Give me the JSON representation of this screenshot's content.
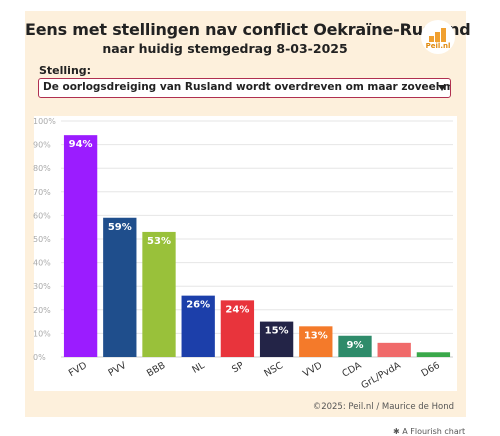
{
  "header": {
    "title": "Eens met stellingen nav conflict Oekraïne-Rusland",
    "subtitle": "naar huidig stemgedrag 8-03-2025",
    "logo_text": "Peil.nl"
  },
  "stelling": {
    "label": "Stelling:",
    "selected": "De oorlogsdreiging van Rusland wordt overdreven om maar zoveel mogelijk geld na"
  },
  "footer": {
    "credit": "©2025: Peil.nl / Maurice de Hond",
    "flourish": "A Flourish chart"
  },
  "chart_data": {
    "type": "bar",
    "title": "",
    "xlabel": "",
    "ylabel": "",
    "ylim": [
      0,
      100
    ],
    "yticks": [
      0,
      10,
      20,
      30,
      40,
      50,
      60,
      70,
      80,
      90,
      100
    ],
    "ytick_labels": [
      "0%",
      "10%",
      "20%",
      "30%",
      "40%",
      "50%",
      "60%",
      "70%",
      "80%",
      "90%",
      "100%"
    ],
    "grid": true,
    "categories": [
      "FVD",
      "PVV",
      "BBB",
      "NL",
      "SP",
      "NSC",
      "VVD",
      "CDA",
      "GrL/PvdA",
      "D66"
    ],
    "values": [
      94,
      59,
      53,
      26,
      24,
      15,
      13,
      9,
      6,
      2
    ],
    "labels": [
      "94%",
      "59%",
      "53%",
      "26%",
      "24%",
      "15%",
      "13%",
      "9%",
      "",
      ""
    ],
    "colors": [
      "#9b1cff",
      "#1f4e8c",
      "#99c13a",
      "#1c3faa",
      "#e8343c",
      "#232447",
      "#f47a2a",
      "#2e8b6a",
      "#f06a6a",
      "#3aa84a"
    ]
  }
}
